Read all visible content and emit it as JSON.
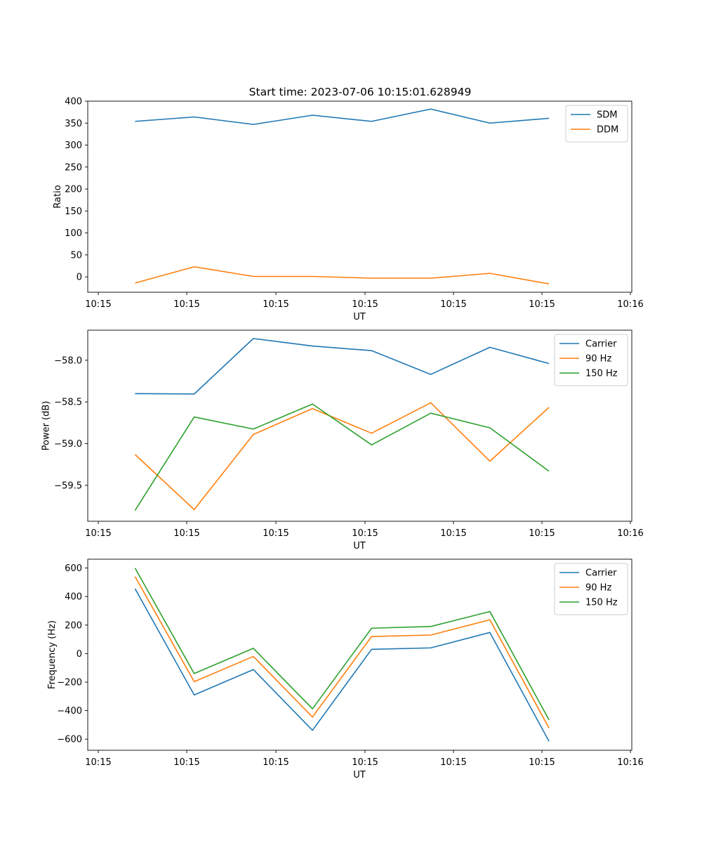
{
  "figure": {
    "title": "Start time: 2023-07-06 10:15:01.628949"
  },
  "chart_data": [
    {
      "type": "line",
      "title": "Start time: 2023-07-06 10:15:01.628949",
      "xlabel": "UT",
      "ylabel": "Ratio",
      "xticks": [
        "10:15",
        "10:15",
        "10:15",
        "10:15",
        "10:15",
        "10:15",
        "10:16"
      ],
      "x": [
        1,
        2,
        3,
        4,
        5,
        6,
        7,
        8
      ],
      "xlim": [
        0.2,
        9.4
      ],
      "ylim": [
        -35,
        400
      ],
      "yticks": [
        0,
        50,
        100,
        150,
        200,
        250,
        300,
        350,
        400
      ],
      "legend_position": "top-right",
      "series": [
        {
          "name": "SDM",
          "color": "#1f77b4",
          "values": [
            354,
            364,
            347,
            368,
            354,
            382,
            350,
            361
          ]
        },
        {
          "name": "DDM",
          "color": "#ff7f0e",
          "values": [
            -14,
            23,
            1,
            1,
            -3,
            -3,
            8,
            -16
          ]
        }
      ]
    },
    {
      "type": "line",
      "title": "",
      "xlabel": "UT",
      "ylabel": "Power (dB)",
      "xticks": [
        "10:15",
        "10:15",
        "10:15",
        "10:15",
        "10:15",
        "10:15",
        "10:16"
      ],
      "x": [
        1,
        2,
        3,
        4,
        5,
        6,
        7,
        8
      ],
      "xlim": [
        0.2,
        9.4
      ],
      "ylim": [
        -59.93,
        -57.64
      ],
      "yticks": [
        -58.0,
        -58.5,
        -59.0,
        -59.5
      ],
      "ytick_labels": [
        "−58.0",
        "−58.5",
        "−59.0",
        "−59.5"
      ],
      "legend_position": "top-right",
      "series": [
        {
          "name": "Carrier",
          "color": "#1f77b4",
          "values": [
            -58.4,
            -58.405,
            -57.74,
            -57.83,
            -57.885,
            -58.17,
            -57.845,
            -58.04
          ]
        },
        {
          "name": "90 Hz",
          "color": "#ff7f0e",
          "values": [
            -59.13,
            -59.79,
            -58.89,
            -58.58,
            -58.875,
            -58.51,
            -59.21,
            -58.565
          ]
        },
        {
          "name": "150 Hz",
          "color": "#2ca02c",
          "values": [
            -59.8,
            -58.68,
            -58.825,
            -58.525,
            -59.015,
            -58.635,
            -58.81,
            -59.33
          ]
        }
      ]
    },
    {
      "type": "line",
      "title": "",
      "xlabel": "UT",
      "ylabel": "Frequency (Hz)",
      "xticks": [
        "10:15",
        "10:15",
        "10:15",
        "10:15",
        "10:15",
        "10:15",
        "10:16"
      ],
      "x": [
        1,
        2,
        3,
        4,
        5,
        6,
        7,
        8
      ],
      "xlim": [
        0.2,
        9.4
      ],
      "ylim": [
        -678,
        662
      ],
      "yticks": [
        600,
        400,
        200,
        0,
        -200,
        -400,
        -600
      ],
      "ytick_labels": [
        "600",
        "400",
        "200",
        "0",
        "−200",
        "−400",
        "−600"
      ],
      "legend_position": "top-right",
      "series": [
        {
          "name": "Carrier",
          "color": "#1f77b4",
          "values": [
            455,
            -290,
            -112,
            -538,
            30,
            40,
            148,
            -615
          ]
        },
        {
          "name": "90 Hz",
          "color": "#ff7f0e",
          "values": [
            540,
            -197,
            -20,
            -445,
            120,
            130,
            237,
            -522
          ]
        },
        {
          "name": "150 Hz",
          "color": "#2ca02c",
          "values": [
            600,
            -140,
            37,
            -387,
            178,
            190,
            295,
            -465
          ]
        }
      ]
    }
  ]
}
